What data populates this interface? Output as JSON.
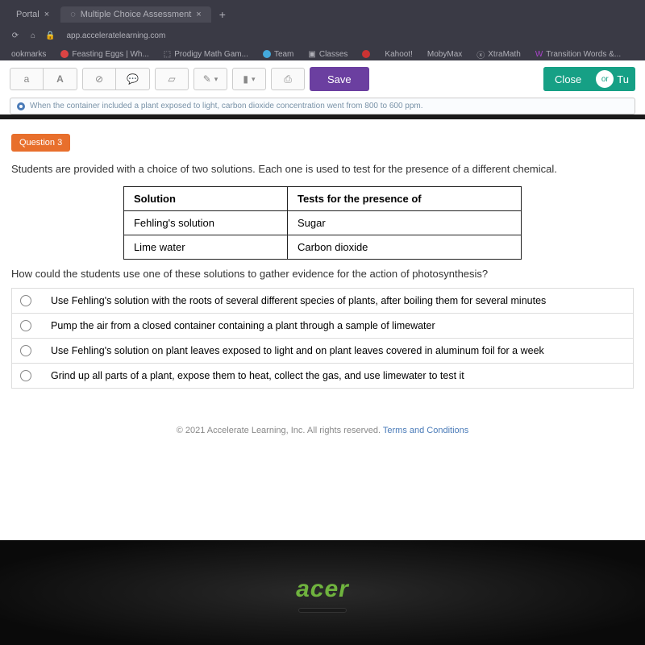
{
  "browser": {
    "tabs": [
      {
        "title": "Portal"
      },
      {
        "title": "Multiple Choice Assessment"
      }
    ],
    "url": "app.acceleratelearning.com",
    "bookmarks_label": "ookmarks",
    "bookmarks": [
      {
        "label": "Feasting Eggs | Wh...",
        "color": "#d44"
      },
      {
        "label": "Prodigy Math Gam...",
        "color": "#fff"
      },
      {
        "label": "Team",
        "color": "#4ad"
      },
      {
        "label": "Classes",
        "color": "#8a6"
      },
      {
        "label": "",
        "color": "#c33"
      },
      {
        "label": "Kahoot!",
        "color": ""
      },
      {
        "label": "MobyMax",
        "color": ""
      },
      {
        "label": "XtraMath",
        "color": "#4aa"
      },
      {
        "label": "Transition Words &...",
        "color": "#a4c"
      }
    ]
  },
  "toolbar": {
    "font_indicator": "A",
    "font_small": "a",
    "save": "Save",
    "close": "Close",
    "or": "or",
    "turn": "Tu"
  },
  "prev_question_snippet": "When the container included a plant exposed to light, carbon dioxide concentration went from 800 to 600 ppm.",
  "question": {
    "badge": "Question 3",
    "prompt": "Students are provided with a choice of two solutions. Each one is used to test for the presence of a different chemical.",
    "table": {
      "headers": [
        "Solution",
        "Tests for the presence of"
      ],
      "rows": [
        [
          "Fehling's solution",
          "Sugar"
        ],
        [
          "Lime water",
          "Carbon dioxide"
        ]
      ]
    },
    "followup": "How could the students use one of these solutions to gather evidence for the action of photosynthesis?",
    "options": [
      "Use Fehling's solution with the roots of several different species of plants, after boiling them for several minutes",
      "Pump the air from a closed container containing a plant through a sample of limewater",
      "Use Fehling's solution on plant leaves exposed to light and on plant leaves covered in aluminum foil for a week",
      "Grind up all parts of a plant, expose them to heat, collect the gas, and use limewater to test it"
    ]
  },
  "footer": {
    "copyright": "© 2021 Accelerate Learning, Inc. All rights reserved. ",
    "terms": "Terms and Conditions"
  },
  "laptop_brand": "acer"
}
